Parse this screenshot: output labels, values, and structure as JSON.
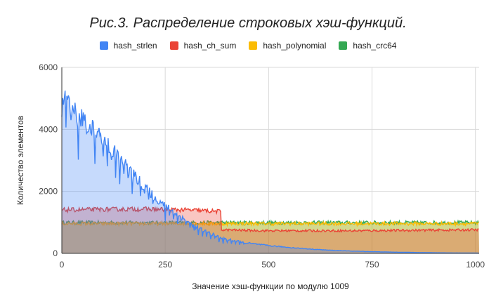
{
  "chart_data": {
    "type": "area",
    "title": "Рис.3. Распределение строковых хэш-функций.",
    "xlabel": "Значение хэш-функции по модулю 1009",
    "ylabel": "Количество элементов",
    "xlim": [
      0,
      1009
    ],
    "ylim": [
      0,
      6000
    ],
    "x_ticks": [
      0,
      250,
      500,
      750,
      1000
    ],
    "y_ticks": [
      0,
      2000,
      4000,
      6000
    ],
    "x_tick_labels": [
      "0",
      "250",
      "500",
      "750",
      "1000"
    ],
    "y_tick_labels": [
      "0",
      "2000",
      "4000",
      "6000"
    ],
    "grid": true,
    "legend_position": "top",
    "series": [
      {
        "name": "hash_strlen",
        "color": "#4285f4",
        "x": [
          0,
          5,
          10,
          20,
          30,
          40,
          50,
          75,
          100,
          125,
          150,
          175,
          200,
          225,
          250,
          275,
          300,
          325,
          350,
          375,
          400,
          450,
          500,
          550,
          600,
          650,
          700,
          750,
          800,
          850,
          900,
          950,
          1009
        ],
        "y": [
          4900,
          5000,
          4850,
          4700,
          4550,
          4400,
          4300,
          4000,
          3700,
          3300,
          2900,
          2500,
          2150,
          1800,
          1550,
          1300,
          1050,
          850,
          700,
          550,
          450,
          330,
          250,
          190,
          140,
          100,
          75,
          55,
          40,
          30,
          20,
          15,
          10
        ]
      },
      {
        "name": "hash_ch_sum",
        "color": "#ea4335",
        "x": [
          0,
          100,
          200,
          300,
          385,
          386,
          500,
          700,
          1009
        ],
        "y": [
          1400,
          1420,
          1430,
          1400,
          1350,
          760,
          730,
          730,
          760
        ]
      },
      {
        "name": "hash_polynomial",
        "color": "#fbbc04",
        "x": [
          0,
          250,
          500,
          750,
          1009
        ],
        "y": [
          960,
          960,
          960,
          960,
          960
        ]
      },
      {
        "name": "hash_crc64",
        "color": "#34a853",
        "x": [
          0,
          250,
          500,
          750,
          1009
        ],
        "y": [
          990,
          990,
          990,
          990,
          990
        ]
      }
    ]
  }
}
